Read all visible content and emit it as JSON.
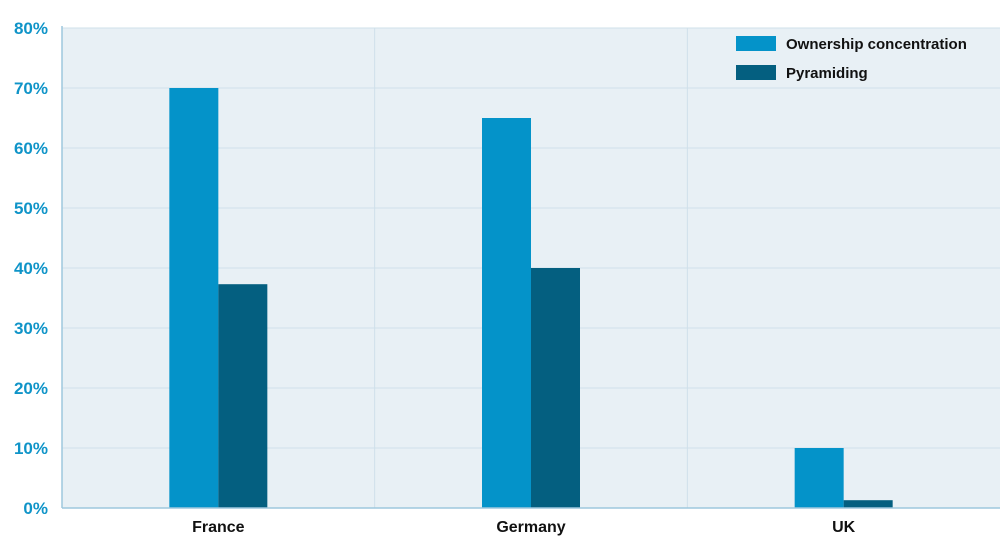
{
  "chart_data": {
    "type": "bar",
    "categories": [
      "France",
      "Germany",
      "UK"
    ],
    "series": [
      {
        "name": "Ownership concentration",
        "values": [
          70,
          65,
          10
        ]
      },
      {
        "name": "Pyramiding",
        "values": [
          37.3,
          40,
          1.3
        ]
      }
    ],
    "ylim": [
      0,
      80
    ],
    "yticks": [
      "0%",
      "10%",
      "20%",
      "30%",
      "40%",
      "50%",
      "60%",
      "70%",
      "80%"
    ],
    "xlabel": "",
    "ylabel": "",
    "title": "",
    "grid": true,
    "legend_position": "top-right",
    "colors": {
      "plot_background": "#e8f0f5",
      "gridline": "#cfe0ea",
      "axis": "#9ec7dd",
      "tick_label": "#0f94c8",
      "series": [
        "#0493c9",
        "#045f80"
      ]
    }
  }
}
